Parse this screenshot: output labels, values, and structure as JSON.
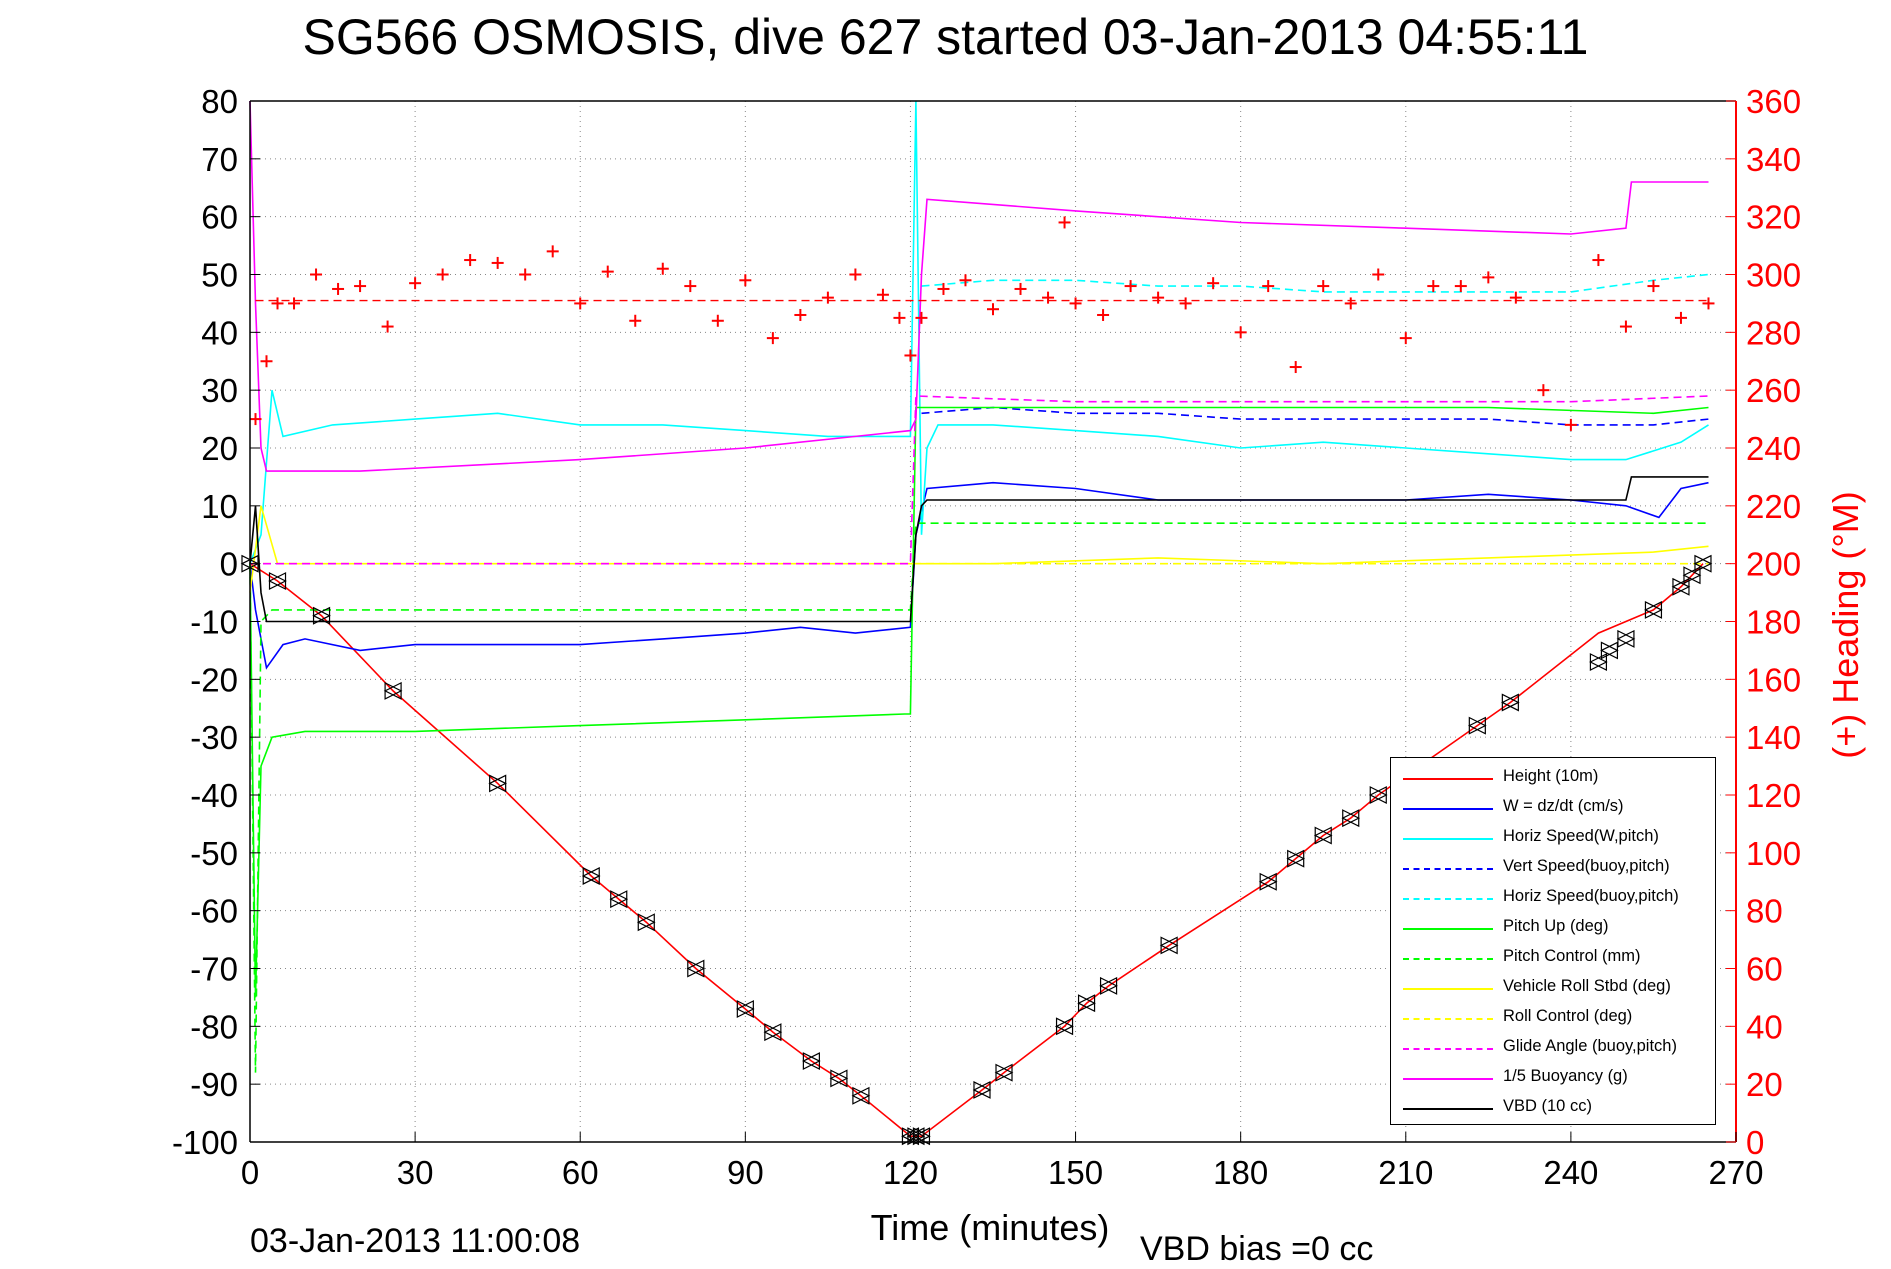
{
  "title": "SG566 OSMOSIS, dive 627 started 03-Jan-2013 04:55:11",
  "footer": {
    "timestamp": "03-Jan-2013 11:00:08",
    "vbd_bias": "VBD bias =0 cc"
  },
  "chart_data": {
    "type": "line",
    "xlabel": "Time (minutes)",
    "ylabel_right": "(+) Heading (°M)",
    "xlim": [
      0,
      270
    ],
    "ylim": [
      -100,
      80
    ],
    "ylim_right": [
      0,
      360
    ],
    "x_ticks": [
      "0",
      "30",
      "60",
      "90",
      "120",
      "150",
      "180",
      "210",
      "240",
      "270"
    ],
    "y_ticks": [
      "-100",
      "-90",
      "-80",
      "-70",
      "-60",
      "-50",
      "-40",
      "-30",
      "-20",
      "-10",
      "0",
      "10",
      "20",
      "30",
      "40",
      "50",
      "60",
      "70",
      "80"
    ],
    "y_ticks_right": [
      "0",
      "20",
      "40",
      "60",
      "80",
      "100",
      "120",
      "140",
      "160",
      "180",
      "200",
      "220",
      "240",
      "260",
      "280",
      "300",
      "320",
      "340",
      "360"
    ],
    "grid": true,
    "legend_position": "bottom-right",
    "colors": {
      "height": "#ff0000",
      "w": "#0000ff",
      "horiz_speed": "#00ffff",
      "pitch": "#00ff00",
      "roll": "#ffff00",
      "glide": "#ff00ff",
      "buoyancy": "#ff00ff",
      "vbd": "#000000",
      "heading": "#ff0000",
      "right_axis": "#ff0000"
    },
    "series": [
      {
        "name": "Height (10m)",
        "style": "solid",
        "color": "#ff0000",
        "x": [
          0,
          5,
          13,
          26,
          45,
          62,
          67,
          72,
          81,
          90,
          95,
          102,
          107,
          111,
          120,
          122,
          133,
          137,
          148,
          152,
          156,
          167,
          185,
          190,
          195,
          200,
          205,
          223,
          229,
          245,
          250,
          255,
          260,
          264
        ],
        "y": [
          0,
          -3,
          -9,
          -22,
          -38,
          -54,
          -58,
          -62,
          -70,
          -77,
          -81,
          -86,
          -89,
          -92,
          -99,
          -99,
          -91,
          -88,
          -80,
          -76,
          -73,
          -66,
          -55,
          -51,
          -47,
          -44,
          -40,
          -28,
          -24,
          -12,
          -10,
          -8,
          -4,
          0
        ]
      },
      {
        "name": "W = dz/dt (cm/s)",
        "style": "solid",
        "color": "#0000ff",
        "x": [
          0,
          1,
          3,
          6,
          10,
          20,
          30,
          45,
          60,
          75,
          90,
          100,
          110,
          120,
          121,
          123,
          135,
          150,
          165,
          180,
          195,
          210,
          225,
          240,
          250,
          256,
          260,
          265
        ],
        "y": [
          0,
          -8,
          -18,
          -14,
          -13,
          -15,
          -14,
          -14,
          -14,
          -13,
          -12,
          -11,
          -12,
          -11,
          5,
          13,
          14,
          13,
          11,
          11,
          11,
          11,
          12,
          11,
          10,
          8,
          13,
          14
        ]
      },
      {
        "name": "Horiz Speed(W,pitch)",
        "style": "solid",
        "color": "#00ffff",
        "x": [
          0,
          2,
          4,
          6,
          15,
          30,
          45,
          60,
          75,
          90,
          105,
          120,
          121,
          122,
          123,
          125,
          135,
          150,
          165,
          180,
          195,
          210,
          225,
          240,
          250,
          260,
          265
        ],
        "y": [
          0,
          5,
          30,
          22,
          24,
          25,
          26,
          24,
          24,
          23,
          22,
          22,
          80,
          5,
          20,
          24,
          24,
          23,
          22,
          20,
          21,
          20,
          19,
          18,
          18,
          21,
          24
        ]
      },
      {
        "name": "Vert Speed(buoy,pitch)",
        "style": "dashed",
        "color": "#0000ff",
        "x": [
          122,
          135,
          150,
          165,
          180,
          195,
          210,
          225,
          240,
          255,
          265
        ],
        "y": [
          26,
          27,
          26,
          26,
          25,
          25,
          25,
          25,
          24,
          24,
          25
        ]
      },
      {
        "name": "Horiz Speed(buoy,pitch)",
        "style": "dashed",
        "color": "#00ffff",
        "x": [
          122,
          135,
          150,
          165,
          180,
          195,
          210,
          225,
          240,
          255,
          265
        ],
        "y": [
          48,
          49,
          49,
          48,
          48,
          47,
          47,
          47,
          47,
          49,
          50
        ]
      },
      {
        "name": "Pitch Up (deg)",
        "style": "solid",
        "color": "#00ff00",
        "x": [
          0,
          1,
          2,
          4,
          10,
          30,
          60,
          90,
          119,
          120,
          121,
          135,
          165,
          195,
          225,
          255,
          265
        ],
        "y": [
          0,
          -75,
          -35,
          -30,
          -29,
          -29,
          -28,
          -27,
          -26,
          -26,
          27,
          27,
          27,
          27,
          27,
          26,
          27
        ]
      },
      {
        "name": "Pitch Control (mm)",
        "style": "dashed",
        "color": "#00ff00",
        "x": [
          0,
          1,
          2,
          4,
          30,
          60,
          90,
          120,
          121,
          135,
          165,
          195,
          225,
          255,
          265
        ],
        "y": [
          0,
          -88,
          -10,
          -8,
          -8,
          -8,
          -8,
          -8,
          7,
          7,
          7,
          7,
          7,
          7,
          7
        ]
      },
      {
        "name": "Vehicle Roll Stbd (deg)",
        "style": "solid",
        "color": "#ffff00",
        "x": [
          0,
          2,
          5,
          30,
          60,
          90,
          120,
          121,
          135,
          165,
          195,
          225,
          255,
          265
        ],
        "y": [
          -5,
          10,
          0,
          0,
          0,
          0,
          0,
          0,
          0,
          1,
          0,
          1,
          2,
          3
        ]
      },
      {
        "name": "Roll Control (deg)",
        "style": "dashed",
        "color": "#ffff00",
        "x": [
          0,
          5,
          30,
          60,
          90,
          120,
          150,
          180,
          210,
          240,
          265
        ],
        "y": [
          0,
          0,
          0,
          0,
          0,
          0,
          0,
          0,
          0,
          0,
          0
        ]
      },
      {
        "name": "Glide Angle (buoy,pitch)",
        "style": "dashed",
        "color": "#ff00ff",
        "x": [
          0,
          30,
          60,
          90,
          120,
          121,
          150,
          180,
          210,
          240,
          265
        ],
        "y": [
          0,
          0,
          0,
          0,
          0,
          29,
          28,
          28,
          28,
          28,
          29
        ]
      },
      {
        "name": "1/5 Buoyancy (g)",
        "style": "solid",
        "color": "#ff00ff",
        "x": [
          0,
          1,
          2,
          3,
          10,
          20,
          60,
          90,
          120,
          121,
          122,
          123,
          150,
          180,
          210,
          240,
          250,
          251,
          265
        ],
        "y": [
          80,
          45,
          20,
          16,
          16,
          16,
          18,
          20,
          23,
          25,
          50,
          63,
          61,
          59,
          58,
          57,
          58,
          66,
          66
        ]
      },
      {
        "name": "VBD (10 cc)",
        "style": "solid",
        "color": "#000000",
        "x": [
          0,
          1,
          2,
          3,
          4,
          60,
          119,
          120,
          121,
          122,
          123,
          150,
          180,
          240,
          250,
          251,
          265
        ],
        "y": [
          0,
          10,
          -5,
          -10,
          -10,
          -10,
          -10,
          -10,
          5,
          10,
          11,
          11,
          11,
          11,
          11,
          15,
          15
        ]
      }
    ],
    "heading_series": {
      "name": "(+) Heading (°M)",
      "marker": "+",
      "color": "#ff0000",
      "target": 291,
      "x": [
        1,
        3,
        5,
        8,
        12,
        16,
        20,
        25,
        30,
        35,
        40,
        45,
        50,
        55,
        60,
        65,
        70,
        75,
        80,
        85,
        90,
        95,
        100,
        105,
        110,
        115,
        118,
        120,
        122,
        126,
        130,
        135,
        140,
        145,
        148,
        150,
        155,
        160,
        165,
        170,
        175,
        180,
        185,
        190,
        195,
        200,
        205,
        210,
        215,
        220,
        225,
        230,
        235,
        240,
        245,
        250,
        255,
        260,
        265
      ],
      "y": [
        250,
        270,
        290,
        290,
        300,
        295,
        296,
        282,
        297,
        300,
        305,
        304,
        300,
        308,
        290,
        301,
        284,
        302,
        296,
        284,
        298,
        278,
        286,
        292,
        300,
        293,
        285,
        272,
        285,
        295,
        298,
        288,
        295,
        292,
        318,
        290,
        286,
        296,
        292,
        290,
        297,
        280,
        296,
        268,
        296,
        290,
        300,
        278,
        296,
        296,
        299,
        292,
        260,
        248,
        305,
        282,
        296,
        285,
        290
      ]
    },
    "markers": {
      "name": "",
      "x": [
        0,
        5,
        13,
        26,
        45,
        62,
        67,
        72,
        81,
        90,
        95,
        102,
        107,
        111,
        120,
        121,
        122,
        133,
        137,
        148,
        152,
        156,
        167,
        185,
        190,
        195,
        200,
        205,
        223,
        229,
        245,
        247,
        250,
        255,
        260,
        262,
        264
      ],
      "y": [
        0,
        -3,
        -9,
        -22,
        -38,
        -54,
        -58,
        -62,
        -70,
        -77,
        -81,
        -86,
        -89,
        -92,
        -99,
        -99,
        -99,
        -91,
        -88,
        -80,
        -76,
        -73,
        -66,
        -55,
        -51,
        -47,
        -44,
        -40,
        -28,
        -24,
        -17,
        -15,
        -13,
        -8,
        -4,
        -2,
        0
      ]
    }
  }
}
